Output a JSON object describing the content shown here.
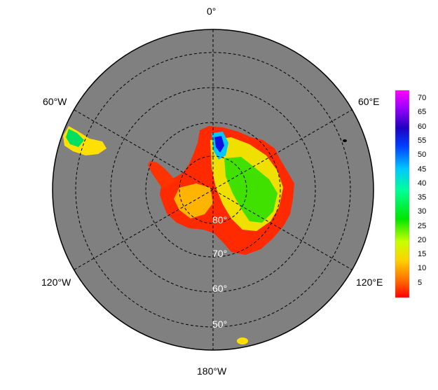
{
  "map": {
    "projection": "south-polar-stereographic",
    "background_color": "#808080",
    "grid_style": "dashed",
    "longitude_labels": [
      "0°",
      "60°E",
      "120°E",
      "180°W",
      "120°W",
      "60°W"
    ],
    "latitude_labels": [
      "80°",
      "70°",
      "60°",
      "50°"
    ]
  },
  "colorbar": {
    "ticks": [
      "70",
      "65",
      "60",
      "55",
      "50",
      "45",
      "40",
      "35",
      "30",
      "25",
      "20",
      "15",
      "10",
      "5"
    ],
    "min": 0,
    "max": 73,
    "colors": [
      "#ff0000",
      "#ff6a00",
      "#ffd200",
      "#c8ff00",
      "#00e600",
      "#00ff9a",
      "#00c8ff",
      "#0040ff",
      "#2000c0",
      "#a000ff",
      "#ff00ff"
    ]
  }
}
